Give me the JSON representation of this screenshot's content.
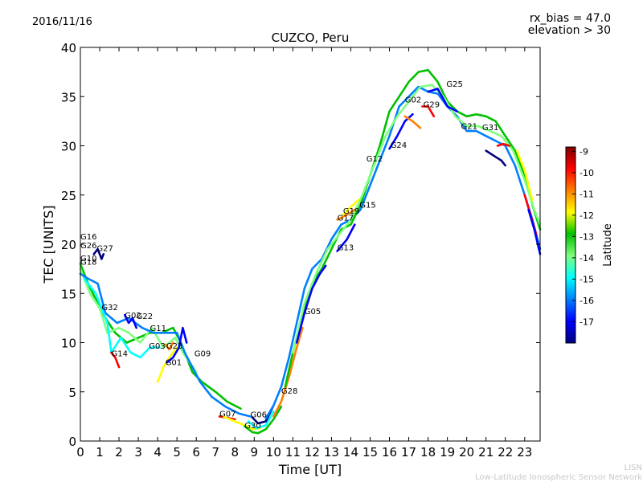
{
  "header": {
    "date": "2016/11/16",
    "rx_bias": "rx_bias = 47.0",
    "elevation": "elevation > 30"
  },
  "footer": {
    "line1": "LISN",
    "line2": "Low-Latitude Ionospheric Sensor Network"
  },
  "colorbar": {
    "label": "Latitude",
    "ticks": [
      "-9",
      "-10",
      "-11",
      "-12",
      "-13",
      "-14",
      "-15",
      "-16",
      "-17"
    ],
    "range": [
      -18,
      -8.8
    ],
    "colors": [
      "#00007f",
      "#0000ff",
      "#007fff",
      "#00ffff",
      "#7fff7f",
      "#00c000",
      "#ffff00",
      "#ff7f00",
      "#ff0000",
      "#7f0000"
    ]
  },
  "chart_data": {
    "type": "line",
    "title": "CUZCO, Peru",
    "xlabel": "Time [UT]",
    "ylabel": "TEC [UNITS]",
    "xlim": [
      0,
      23.8
    ],
    "ylim": [
      0,
      40
    ],
    "xticks": [
      "0",
      "1",
      "2",
      "3",
      "4",
      "5",
      "6",
      "7",
      "8",
      "9",
      "10",
      "11",
      "12",
      "13",
      "14",
      "15",
      "16",
      "17",
      "18",
      "19",
      "20",
      "21",
      "22",
      "23"
    ],
    "yticks": [
      "0",
      "5",
      "10",
      "15",
      "20",
      "25",
      "30",
      "35",
      "40"
    ],
    "satellite_labels": [
      {
        "name": "G16",
        "x": 0.0,
        "y": 20.5
      },
      {
        "name": "G26",
        "x": 0.0,
        "y": 19.6
      },
      {
        "name": "G27",
        "x": 0.85,
        "y": 19.3
      },
      {
        "name": "G10",
        "x": 0.0,
        "y": 18.3
      },
      {
        "name": "G18",
        "x": 0.0,
        "y": 17.9
      },
      {
        "name": "G32",
        "x": 1.1,
        "y": 13.3
      },
      {
        "name": "G02",
        "x": 2.3,
        "y": 12.5
      },
      {
        "name": "G22",
        "x": 2.9,
        "y": 12.4
      },
      {
        "name": "G11",
        "x": 3.6,
        "y": 11.2
      },
      {
        "name": "G03",
        "x": 3.55,
        "y": 9.4
      },
      {
        "name": "G23",
        "x": 4.45,
        "y": 9.4
      },
      {
        "name": "G14",
        "x": 1.6,
        "y": 8.6
      },
      {
        "name": "G09",
        "x": 5.9,
        "y": 8.6
      },
      {
        "name": "G01",
        "x": 4.4,
        "y": 7.7
      },
      {
        "name": "G07",
        "x": 7.2,
        "y": 2.5
      },
      {
        "name": "G06",
        "x": 8.8,
        "y": 2.4
      },
      {
        "name": "G30",
        "x": 8.5,
        "y": 1.3
      },
      {
        "name": "G28",
        "x": 10.4,
        "y": 4.8
      },
      {
        "name": "G05",
        "x": 11.6,
        "y": 12.9
      },
      {
        "name": "G13",
        "x": 13.3,
        "y": 19.4
      },
      {
        "name": "G17",
        "x": 13.3,
        "y": 22.4
      },
      {
        "name": "G19",
        "x": 13.6,
        "y": 23.1
      },
      {
        "name": "G15",
        "x": 14.45,
        "y": 23.7
      },
      {
        "name": "G12",
        "x": 14.8,
        "y": 28.4
      },
      {
        "name": "G24",
        "x": 16.05,
        "y": 29.8
      },
      {
        "name": "G02",
        "x": 16.8,
        "y": 34.4
      },
      {
        "name": "G29",
        "x": 17.75,
        "y": 33.9
      },
      {
        "name": "G25",
        "x": 18.95,
        "y": 36.0
      },
      {
        "name": "G21",
        "x": 19.7,
        "y": 31.7
      },
      {
        "name": "G31",
        "x": 20.8,
        "y": 31.6
      }
    ],
    "series": [
      {
        "color": "#00c000",
        "points": [
          [
            0.0,
            18.0
          ],
          [
            0.4,
            16.0
          ],
          [
            0.9,
            14.0
          ],
          [
            1.3,
            12.5
          ],
          [
            1.8,
            11.0
          ],
          [
            2.4,
            10.0
          ],
          [
            3.0,
            10.5
          ],
          [
            3.6,
            11.0
          ],
          [
            4.2,
            11.0
          ],
          [
            4.8,
            11.5
          ],
          [
            5.2,
            10.0
          ],
          [
            5.8,
            7.0
          ],
          [
            6.3,
            6.0
          ],
          [
            7.0,
            5.0
          ],
          [
            7.6,
            4.0
          ],
          [
            8.3,
            3.3
          ]
        ]
      },
      {
        "color": "#7fff7f",
        "points": [
          [
            0.0,
            17.5
          ],
          [
            0.5,
            15.0
          ],
          [
            1.0,
            13.5
          ],
          [
            1.4,
            11.0
          ],
          [
            2.0,
            11.5
          ],
          [
            2.5,
            11.0
          ],
          [
            3.1,
            10.0
          ],
          [
            3.7,
            11.5
          ],
          [
            4.3,
            9.5
          ],
          [
            4.9,
            10.5
          ],
          [
            5.3,
            9.0
          ],
          [
            6.0,
            7.0
          ]
        ]
      },
      {
        "color": "#007fff",
        "points": [
          [
            0.0,
            17.0
          ],
          [
            0.4,
            16.5
          ],
          [
            0.9,
            16.0
          ],
          [
            1.3,
            13.0
          ],
          [
            1.9,
            12.0
          ],
          [
            2.5,
            12.5
          ],
          [
            3.2,
            11.5
          ],
          [
            3.8,
            11.0
          ],
          [
            4.5,
            11.0
          ],
          [
            5.0,
            11.0
          ],
          [
            5.4,
            9.0
          ],
          [
            6.2,
            6.0
          ],
          [
            6.8,
            4.5
          ],
          [
            7.5,
            3.5
          ],
          [
            8.2,
            2.8
          ],
          [
            8.8,
            2.5
          ]
        ]
      },
      {
        "color": "#00ffff",
        "points": [
          [
            0.2,
            16.5
          ],
          [
            0.8,
            15.0
          ],
          [
            1.4,
            12.0
          ],
          [
            1.6,
            9.0
          ],
          [
            2.1,
            10.5
          ],
          [
            2.6,
            9.0
          ],
          [
            3.1,
            8.5
          ],
          [
            3.6,
            9.5
          ],
          [
            4.1,
            9.5
          ]
        ]
      },
      {
        "color": "#00007f",
        "points": [
          [
            0.7,
            19.0
          ],
          [
            0.9,
            19.5
          ],
          [
            1.1,
            18.5
          ],
          [
            1.2,
            19.0
          ]
        ]
      },
      {
        "color": "#0000ff",
        "points": [
          [
            2.3,
            12.8
          ],
          [
            2.5,
            12.0
          ],
          [
            2.7,
            12.5
          ],
          [
            2.9,
            11.5
          ]
        ]
      },
      {
        "color": "#ff0000",
        "points": [
          [
            1.6,
            9.0
          ],
          [
            1.8,
            8.5
          ],
          [
            2.0,
            7.5
          ]
        ]
      },
      {
        "color": "#ff7f00",
        "points": [
          [
            4.4,
            9.8
          ],
          [
            4.6,
            9.3
          ],
          [
            4.8,
            10.0
          ]
        ]
      },
      {
        "color": "#ffff00",
        "points": [
          [
            4.0,
            6.0
          ],
          [
            4.3,
            7.5
          ],
          [
            4.6,
            8.5
          ],
          [
            5.0,
            9.5
          ]
        ]
      },
      {
        "color": "#0000ff",
        "points": [
          [
            4.5,
            8.0
          ],
          [
            4.8,
            8.5
          ],
          [
            5.1,
            9.5
          ],
          [
            5.3,
            11.5
          ],
          [
            5.5,
            10.0
          ]
        ]
      },
      {
        "color": "#ff0000",
        "points": [
          [
            7.2,
            2.5
          ],
          [
            7.5,
            2.4
          ],
          [
            8.0,
            2.2
          ]
        ]
      },
      {
        "color": "#ffff00",
        "points": [
          [
            7.4,
            2.5
          ],
          [
            8.0,
            2.0
          ],
          [
            8.5,
            1.6
          ],
          [
            8.9,
            1.2
          ],
          [
            9.3,
            1.3
          ]
        ]
      },
      {
        "color": "#00c000",
        "points": [
          [
            8.5,
            1.5
          ],
          [
            8.9,
            0.9
          ],
          [
            9.2,
            0.8
          ],
          [
            9.6,
            1.2
          ],
          [
            10.0,
            2.2
          ],
          [
            10.4,
            3.5
          ]
        ]
      },
      {
        "color": "#00ffff",
        "points": [
          [
            8.7,
            2.0
          ],
          [
            9.1,
            1.3
          ],
          [
            9.6,
            1.6
          ],
          [
            10.0,
            3.0
          ]
        ]
      },
      {
        "color": "#00007f",
        "points": [
          [
            8.9,
            2.4
          ],
          [
            9.2,
            1.8
          ],
          [
            9.6,
            2.0
          ],
          [
            10.0,
            3.6
          ]
        ]
      },
      {
        "color": "#ff7f00",
        "points": [
          [
            10.0,
            2.5
          ],
          [
            10.4,
            4.0
          ],
          [
            10.8,
            6.5
          ],
          [
            11.2,
            9.5
          ],
          [
            11.5,
            11.5
          ]
        ]
      },
      {
        "color": "#007fff",
        "points": [
          [
            9.6,
            2.3
          ],
          [
            10.0,
            3.6
          ],
          [
            10.4,
            5.5
          ],
          [
            10.8,
            8.5
          ],
          [
            11.2,
            12.0
          ],
          [
            11.6,
            15.5
          ],
          [
            12.0,
            17.5
          ],
          [
            12.5,
            18.5
          ],
          [
            13.0,
            20.5
          ],
          [
            13.5,
            22.0
          ],
          [
            14.0,
            22.5
          ],
          [
            14.5,
            23.5
          ],
          [
            15.0,
            26.0
          ],
          [
            15.5,
            28.5
          ],
          [
            16.0,
            31.0
          ],
          [
            16.5,
            34.0
          ],
          [
            17.0,
            35.0
          ],
          [
            17.5,
            36.0
          ],
          [
            18.0,
            35.5
          ],
          [
            18.5,
            35.3
          ],
          [
            19.0,
            34.0
          ],
          [
            19.5,
            33.0
          ],
          [
            20.0,
            31.5
          ],
          [
            20.5,
            31.5
          ],
          [
            21.0,
            31.0
          ],
          [
            21.5,
            30.5
          ],
          [
            22.0,
            30.0
          ],
          [
            22.5,
            28.0
          ],
          [
            23.0,
            25.0
          ],
          [
            23.4,
            22.5
          ],
          [
            23.8,
            19.5
          ]
        ]
      },
      {
        "color": "#00c000",
        "points": [
          [
            10.6,
            5.5
          ],
          [
            11.0,
            9.0
          ],
          [
            11.5,
            13.0
          ],
          [
            12.0,
            16.0
          ],
          [
            12.5,
            17.5
          ],
          [
            13.0,
            19.5
          ],
          [
            13.5,
            21.5
          ],
          [
            14.0,
            22.0
          ],
          [
            14.5,
            24.0
          ],
          [
            15.0,
            27.0
          ],
          [
            15.5,
            30.0
          ],
          [
            16.0,
            33.5
          ],
          [
            16.5,
            35.0
          ],
          [
            17.0,
            36.5
          ],
          [
            17.5,
            37.5
          ],
          [
            18.0,
            37.7
          ],
          [
            18.5,
            36.5
          ],
          [
            19.0,
            34.5
          ],
          [
            19.5,
            33.5
          ],
          [
            20.0,
            33.0
          ],
          [
            20.5,
            33.2
          ],
          [
            21.0,
            33.0
          ],
          [
            21.5,
            32.5
          ],
          [
            22.0,
            31.0
          ],
          [
            22.5,
            29.5
          ],
          [
            23.0,
            27.0
          ],
          [
            23.4,
            24.0
          ],
          [
            23.8,
            21.5
          ]
        ]
      },
      {
        "color": "#7fff7f",
        "points": [
          [
            11.0,
            9.0
          ],
          [
            11.6,
            14.0
          ],
          [
            12.2,
            17.0
          ],
          [
            12.8,
            19.5
          ],
          [
            13.4,
            21.0
          ],
          [
            14.0,
            22.5
          ],
          [
            14.6,
            25.0
          ],
          [
            15.2,
            28.0
          ],
          [
            15.8,
            31.0
          ],
          [
            16.4,
            33.0
          ],
          [
            17.0,
            34.5
          ],
          [
            17.6,
            36.0
          ],
          [
            18.2,
            36.2
          ],
          [
            18.8,
            35.0
          ],
          [
            19.4,
            33.0
          ],
          [
            20.0,
            32.0
          ],
          [
            20.6,
            32.0
          ],
          [
            21.2,
            31.5
          ],
          [
            21.8,
            31.0
          ],
          [
            22.4,
            29.5
          ],
          [
            23.0,
            26.5
          ],
          [
            23.5,
            23.5
          ],
          [
            23.8,
            22.0
          ]
        ]
      },
      {
        "color": "#0000ff",
        "points": [
          [
            11.2,
            10.0
          ],
          [
            11.6,
            13.0
          ],
          [
            12.0,
            15.5
          ],
          [
            12.4,
            17.0
          ],
          [
            12.7,
            17.8
          ]
        ]
      },
      {
        "color": "#0000ff",
        "points": [
          [
            13.3,
            19.3
          ],
          [
            13.8,
            20.5
          ],
          [
            14.2,
            22.0
          ]
        ]
      },
      {
        "color": "#ff7f00",
        "points": [
          [
            13.3,
            22.5
          ],
          [
            13.8,
            23.0
          ],
          [
            14.2,
            23.5
          ]
        ]
      },
      {
        "color": "#ffff00",
        "points": [
          [
            13.6,
            23.0
          ],
          [
            14.0,
            23.8
          ],
          [
            14.4,
            24.5
          ]
        ]
      },
      {
        "color": "#0000ff",
        "points": [
          [
            16.0,
            29.7
          ],
          [
            16.4,
            31.0
          ],
          [
            16.8,
            32.5
          ],
          [
            17.2,
            33.2
          ]
        ]
      },
      {
        "color": "#ff0000",
        "points": [
          [
            17.7,
            34.0
          ],
          [
            18.0,
            34.0
          ],
          [
            18.3,
            33.0
          ]
        ]
      },
      {
        "color": "#ff7f00",
        "points": [
          [
            16.8,
            33.0
          ],
          [
            17.2,
            32.5
          ],
          [
            17.6,
            31.8
          ]
        ]
      },
      {
        "color": "#0000ff",
        "points": [
          [
            18.0,
            35.5
          ],
          [
            18.5,
            35.8
          ],
          [
            19.0,
            34.0
          ],
          [
            19.5,
            33.5
          ]
        ]
      },
      {
        "color": "#00007f",
        "points": [
          [
            21.0,
            29.5
          ],
          [
            21.4,
            29.0
          ],
          [
            21.8,
            28.5
          ],
          [
            22.0,
            28.0
          ]
        ]
      },
      {
        "color": "#ff0000",
        "points": [
          [
            21.6,
            30.0
          ],
          [
            21.9,
            30.2
          ],
          [
            22.2,
            30.0
          ]
        ]
      },
      {
        "color": "#ff0000",
        "points": [
          [
            23.0,
            25.0
          ],
          [
            23.3,
            23.0
          ],
          [
            23.6,
            21.0
          ]
        ]
      },
      {
        "color": "#0000ff",
        "points": [
          [
            23.2,
            23.5
          ],
          [
            23.5,
            21.5
          ],
          [
            23.8,
            19.0
          ]
        ]
      },
      {
        "color": "#ffff00",
        "points": [
          [
            22.6,
            29.5
          ],
          [
            23.0,
            27.5
          ],
          [
            23.4,
            24.5
          ]
        ]
      }
    ]
  }
}
